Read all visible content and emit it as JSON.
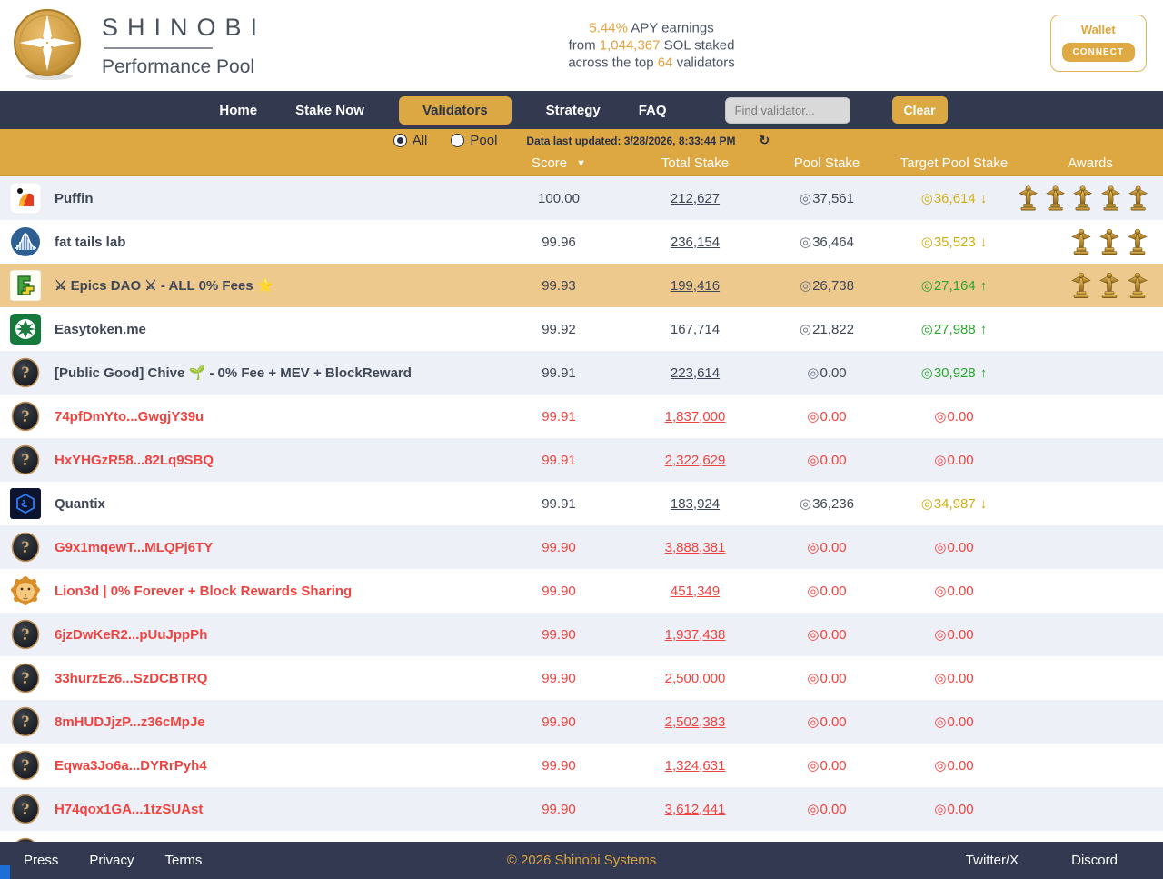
{
  "header": {
    "brand_title": "SHINOBI",
    "brand_subtitle": "Performance Pool",
    "apy": {
      "line1_highlight": "5.44%",
      "line1_rest": " APY earnings",
      "line2_pre": "from ",
      "line2_highlight": "1,044,367",
      "line2_post": " SOL staked",
      "line3_pre": "across the top ",
      "line3_highlight": "64",
      "line3_post": " validators"
    },
    "wallet": {
      "label": "Wallet",
      "connect": "CONNECT"
    }
  },
  "nav": {
    "items": [
      {
        "label": "Home",
        "active": false
      },
      {
        "label": "Stake Now",
        "active": false
      },
      {
        "label": "Validators",
        "active": true
      },
      {
        "label": "Strategy",
        "active": false
      },
      {
        "label": "FAQ",
        "active": false
      }
    ],
    "search_placeholder": "Find validator...",
    "clear_label": "Clear"
  },
  "filter_bar": {
    "radios": [
      {
        "label": "All",
        "selected": true
      },
      {
        "label": "Pool",
        "selected": false
      }
    ],
    "last_updated": "Data last updated: 3/28/2026, 8:33:44 PM",
    "refresh_icon": "↻"
  },
  "table": {
    "columns": [
      "Score",
      "Total Stake",
      "Pool Stake",
      "Target Pool Stake",
      "Awards"
    ],
    "sort_column": "Score",
    "sort_indicator": "▼",
    "sol_glyph": "◎",
    "rows": [
      {
        "name": "Puffin",
        "icon": "puffin",
        "red": false,
        "highlight": false,
        "score": "100.00",
        "total": "212,627",
        "pool": "37,561",
        "target": "36,614",
        "trend": "↓",
        "target_color": "gold",
        "awards": 5
      },
      {
        "name": "fat tails lab",
        "icon": "fat-tails",
        "red": false,
        "highlight": false,
        "score": "99.96",
        "total": "236,154",
        "pool": "36,464",
        "target": "35,523",
        "trend": "↓",
        "target_color": "gold",
        "awards": 3
      },
      {
        "name": "⚔ Epics DAO ⚔ - ALL 0% Fees ⭐",
        "icon": "epics",
        "red": false,
        "highlight": true,
        "score": "99.93",
        "total": "199,416",
        "pool": "26,738",
        "target": "27,164",
        "trend": "↑",
        "target_color": "green",
        "awards": 3
      },
      {
        "name": "Easytoken.me",
        "icon": "easytoken",
        "red": false,
        "highlight": false,
        "score": "99.92",
        "total": "167,714",
        "pool": "21,822",
        "target": "27,988",
        "trend": "↑",
        "target_color": "green",
        "awards": 0
      },
      {
        "name": "[Public Good] Chive 🌱 - 0% Fee + MEV + BlockReward",
        "icon": "unknown",
        "red": false,
        "highlight": false,
        "score": "99.91",
        "total": "223,614",
        "pool": "0.00",
        "target": "30,928",
        "trend": "↑",
        "target_color": "green",
        "awards": 0
      },
      {
        "name": "74pfDmYto...GwgjY39u",
        "icon": "unknown",
        "red": true,
        "highlight": false,
        "score": "99.91",
        "total": "1,837,000",
        "pool": "0.00",
        "target": "0.00",
        "trend": null,
        "target_color": "red",
        "awards": 0
      },
      {
        "name": "HxYHGzR58...82Lq9SBQ",
        "icon": "unknown",
        "red": true,
        "highlight": false,
        "score": "99.91",
        "total": "2,322,629",
        "pool": "0.00",
        "target": "0.00",
        "trend": null,
        "target_color": "red",
        "awards": 0
      },
      {
        "name": "Quantix",
        "icon": "quantix",
        "red": false,
        "highlight": false,
        "score": "99.91",
        "total": "183,924",
        "pool": "36,236",
        "target": "34,987",
        "trend": "↓",
        "target_color": "gold",
        "awards": 0
      },
      {
        "name": "G9x1mqewT...MLQPj6TY",
        "icon": "unknown",
        "red": true,
        "highlight": false,
        "score": "99.90",
        "total": "3,888,381",
        "pool": "0.00",
        "target": "0.00",
        "trend": null,
        "target_color": "red",
        "awards": 0
      },
      {
        "name": "Lion3d | 0% Forever + Block Rewards Sharing",
        "icon": "lion",
        "red": true,
        "highlight": false,
        "score": "99.90",
        "total": "451,349",
        "pool": "0.00",
        "target": "0.00",
        "trend": null,
        "target_color": "red",
        "awards": 0
      },
      {
        "name": "6jzDwKeR2...pUuJppPh",
        "icon": "unknown",
        "red": true,
        "highlight": false,
        "score": "99.90",
        "total": "1,937,438",
        "pool": "0.00",
        "target": "0.00",
        "trend": null,
        "target_color": "red",
        "awards": 0
      },
      {
        "name": "33hurzEz6...SzDCBTRQ",
        "icon": "unknown",
        "red": true,
        "highlight": false,
        "score": "99.90",
        "total": "2,500,000",
        "pool": "0.00",
        "target": "0.00",
        "trend": null,
        "target_color": "red",
        "awards": 0
      },
      {
        "name": "8mHUDJjzP...z36cMpJe",
        "icon": "unknown",
        "red": true,
        "highlight": false,
        "score": "99.90",
        "total": "2,502,383",
        "pool": "0.00",
        "target": "0.00",
        "trend": null,
        "target_color": "red",
        "awards": 0
      },
      {
        "name": "Eqwa3Jo6a...DYRrPyh4",
        "icon": "unknown",
        "red": true,
        "highlight": false,
        "score": "99.90",
        "total": "1,324,631",
        "pool": "0.00",
        "target": "0.00",
        "trend": null,
        "target_color": "red",
        "awards": 0
      },
      {
        "name": "H74qox1GA...1tzSUAst",
        "icon": "unknown",
        "red": true,
        "highlight": false,
        "score": "99.90",
        "total": "3,612,441",
        "pool": "0.00",
        "target": "0.00",
        "trend": null,
        "target_color": "red",
        "awards": 0
      },
      {
        "name": "",
        "icon": "unknown",
        "red": true,
        "highlight": false,
        "score": "",
        "total": "",
        "pool": "",
        "target": "",
        "trend": null,
        "target_color": "red",
        "awards": 0
      }
    ]
  },
  "footer": {
    "links": [
      "Press",
      "Privacy",
      "Terms"
    ],
    "copyright": "© 2026 Shinobi Systems",
    "social": [
      "Twitter/X",
      "Discord"
    ]
  },
  "colors": {
    "accent_gold": "#dda742",
    "navy": "#333a50",
    "row_alt": "#edf1f7",
    "row_highlight": "#edc98e",
    "red_text": "#ef4340",
    "target_gold": "#cfae14",
    "target_green": "#2ca530"
  }
}
